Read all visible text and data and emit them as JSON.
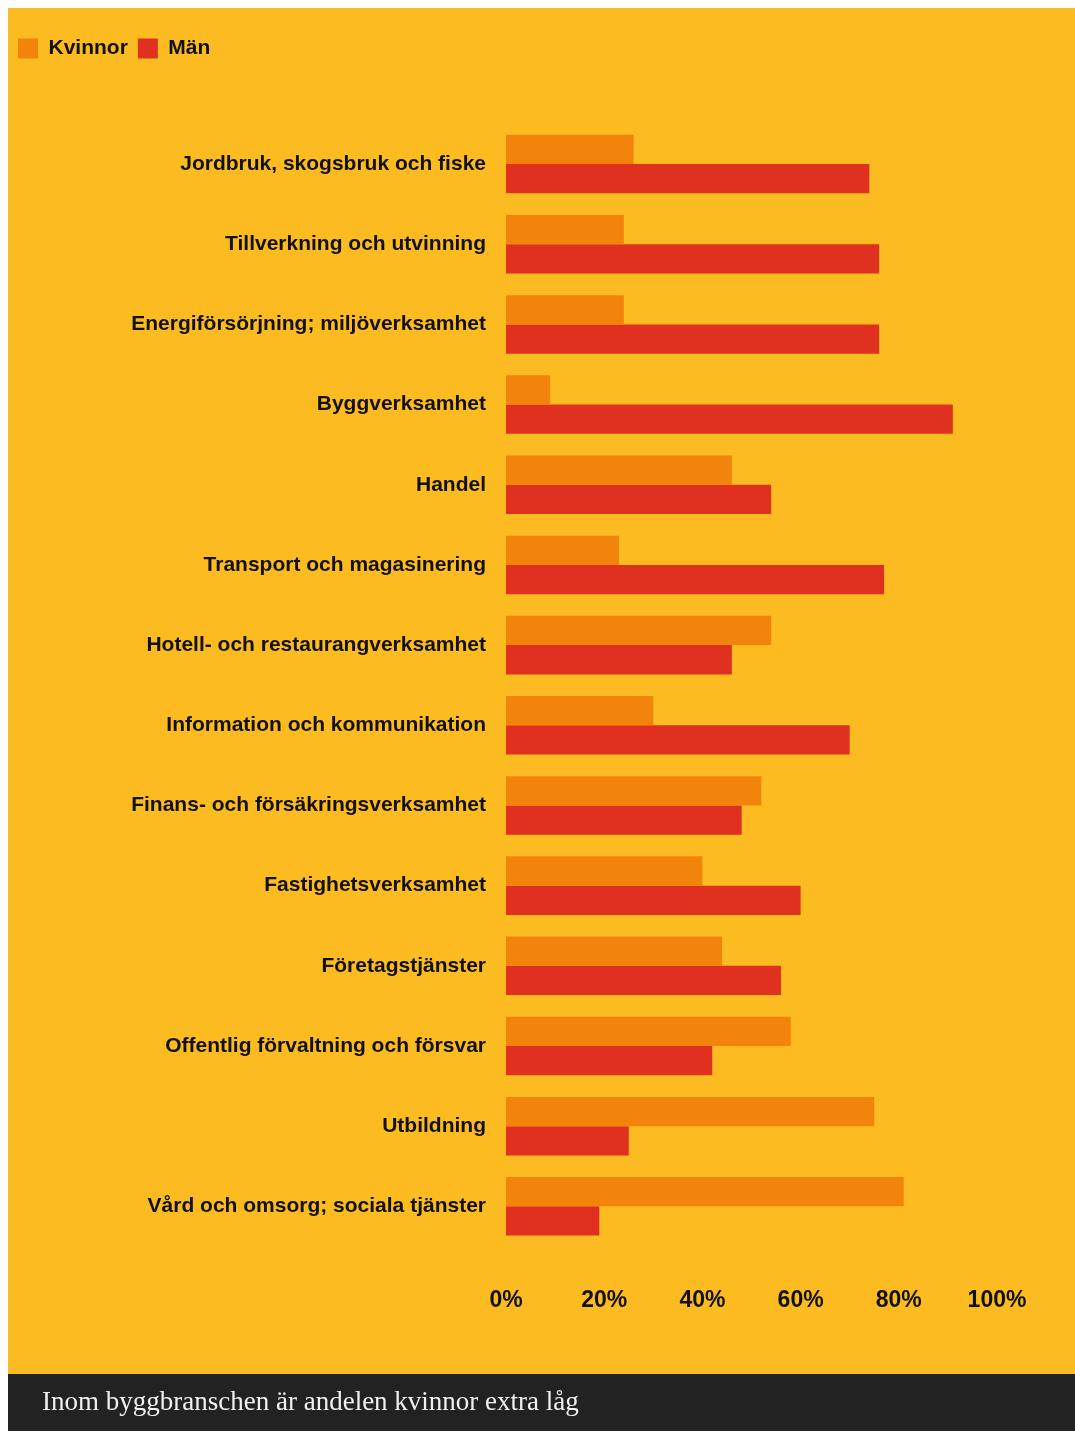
{
  "chart_data": {
    "type": "bar",
    "orientation": "horizontal",
    "categories": [
      "Jordbruk, skogsbruk och fiske",
      "Tillverkning och utvinning",
      "Energiförsörjning; miljöverksamhet",
      "Byggverksamhet",
      "Handel",
      "Transport och magasinering",
      "Hotell- och restaurangverksamhet",
      "Information och kommunikation",
      "Finans- och försäkringsverksamhet",
      "Fastighetsverksamhet",
      "Företagstjänster",
      "Offentlig förvaltning och försvar",
      "Utbildning",
      "Vård och omsorg; sociala tjänster"
    ],
    "series": [
      {
        "name": "Kvinnor",
        "color": "#f2840c",
        "values": [
          26,
          24,
          24,
          9,
          46,
          23,
          54,
          30,
          52,
          40,
          44,
          58,
          75,
          81
        ]
      },
      {
        "name": "Män",
        "color": "#df3020",
        "values": [
          74,
          76,
          76,
          91,
          54,
          77,
          46,
          70,
          48,
          60,
          56,
          42,
          25,
          19
        ]
      }
    ],
    "xlim": [
      0,
      100
    ],
    "xticks": [
      {
        "value": 0,
        "label": "0%"
      },
      {
        "value": 20,
        "label": "20%"
      },
      {
        "value": 40,
        "label": "40%"
      },
      {
        "value": 60,
        "label": "60%"
      },
      {
        "value": 80,
        "label": "80%"
      },
      {
        "value": 100,
        "label": "100%"
      }
    ],
    "grid": false,
    "legend": "top left",
    "annotations": [
      "Inom byggbranschen är andelen kvinnor extra låg"
    ]
  }
}
